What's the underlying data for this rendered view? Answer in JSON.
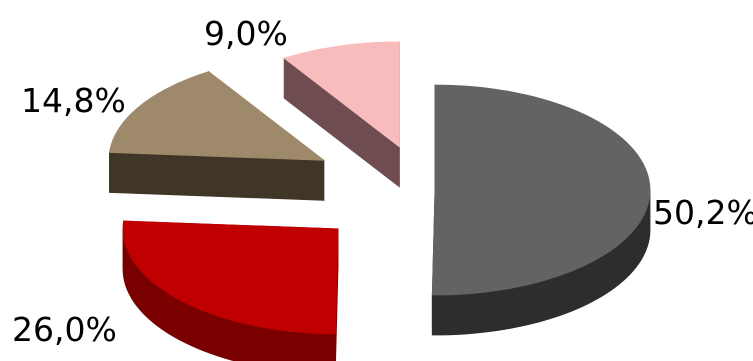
{
  "chart_data": {
    "type": "pie",
    "style": "3d-exploded",
    "slices": [
      {
        "label": "50,2%",
        "value": 50.2,
        "top_color": "#646262",
        "side_color": "#2e2d2d"
      },
      {
        "label": "26,0%",
        "value": 26.0,
        "top_color": "#c00000",
        "side_color": "#7a0000"
      },
      {
        "label": "14,8%",
        "value": 14.8,
        "top_color": "#9e8a6b",
        "side_color": "#403628"
      },
      {
        "label": "9,0%",
        "value": 9.0,
        "top_color": "#f9bcbc",
        "side_color": "#6f4c50"
      }
    ],
    "legend": "none",
    "grid": false
  }
}
